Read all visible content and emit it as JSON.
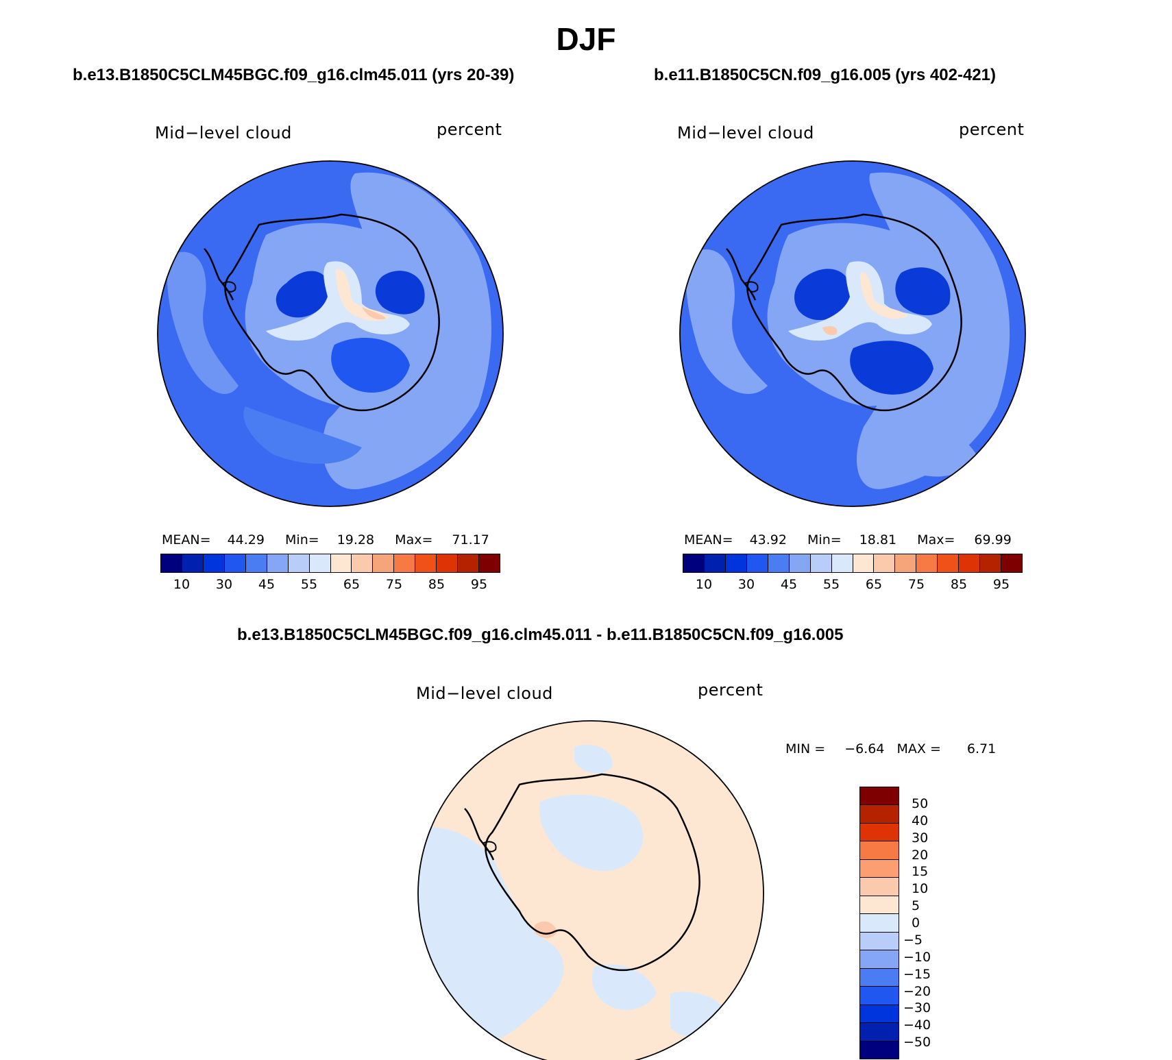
{
  "title": "DJF",
  "panels": [
    {
      "case": "b.e13.B1850C5CLM45BGC.f09_g16.clm45.011 (yrs 20-39)",
      "variable": "Mid−level cloud",
      "units": "percent",
      "stats": {
        "mean_label": "MEAN=",
        "mean": "44.29",
        "min_label": "Min=",
        "min": "19.28",
        "max_label": "Max=",
        "max": "71.17"
      }
    },
    {
      "case": "b.e11.B1850C5CN.f09_g16.005 (yrs 402-421)",
      "variable": "Mid−level cloud",
      "units": "percent",
      "stats": {
        "mean_label": "MEAN=",
        "mean": "43.92",
        "min_label": "Min=",
        "min": "18.81",
        "max_label": "Max=",
        "max": "69.99"
      }
    }
  ],
  "colorbar_levels": [
    "10",
    "30",
    "45",
    "55",
    "65",
    "75",
    "85",
    "95"
  ],
  "colorbar_colors": [
    "#00007f",
    "#0020b0",
    "#0035dd",
    "#1f57f0",
    "#4a7cf2",
    "#85a6f5",
    "#b8cdf8",
    "#dae8fc",
    "#fde7d2",
    "#fbc9ac",
    "#f6a47a",
    "#f77a44",
    "#ef5118",
    "#de3405",
    "#b52200",
    "#7f0000"
  ],
  "difference": {
    "title": "b.e13.B1850C5CLM45BGC.f09_g16.clm45.011 - b.e11.B1850C5CN.f09_g16.005",
    "variable": "Mid−level cloud",
    "units": "percent",
    "minmax": {
      "min_label": "MIN =",
      "min": "−6.64",
      "max_label": "MAX =",
      "max": "6.71"
    },
    "levels": [
      "50",
      "40",
      "30",
      "20",
      "15",
      "10",
      "5",
      "0",
      "−5",
      "−10",
      "−15",
      "−20",
      "−30",
      "−40",
      "−50"
    ],
    "colors": [
      "#7f0000",
      "#b52200",
      "#de3405",
      "#f77a44",
      "#fb9e72",
      "#fbc9ac",
      "#fde7d2",
      "#dae8fc",
      "#b8cdf8",
      "#85a6f5",
      "#4a7cf2",
      "#1f57f0",
      "#0035dd",
      "#0020b0",
      "#00007f"
    ]
  },
  "field_colors": {
    "ocean_outer": "#3b6af2",
    "ocean_light": "#85a6f5",
    "ocean_mid": "#4a7cf2",
    "deep": "#0a3ad8",
    "pale": "#dae8fc",
    "warm": "#fde7d2",
    "warmer": "#fbc9ac",
    "diff_pos": "#fde7d2",
    "diff_neg": "#dae8fc",
    "diff_hi": "#fbc9ac"
  }
}
